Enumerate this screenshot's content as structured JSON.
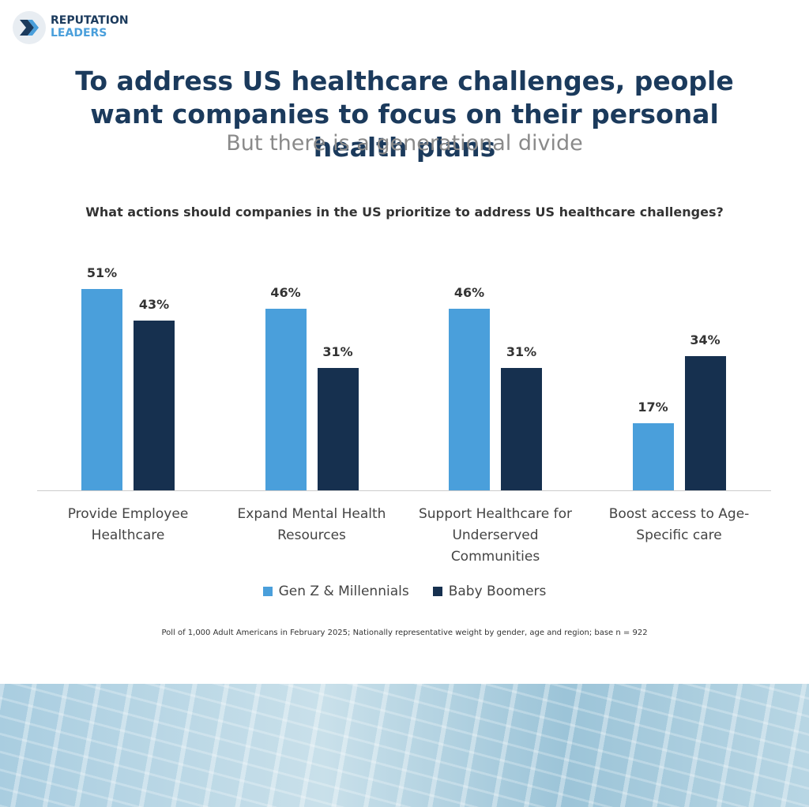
{
  "logo": {
    "line1": "REPUTATION",
    "line2": "LEADERS"
  },
  "chart_data": {
    "type": "bar",
    "title": "To address US healthcare challenges, people want companies to focus on their personal health plans",
    "subtitle": "But there is a generational divide",
    "question": "What actions should companies in the US prioritize to address US healthcare challenges?",
    "categories": [
      "Provide Employee Healthcare",
      "Expand Mental Health Resources",
      "Support Healthcare for Underserved Communities",
      "Boost access to Age-Specific care"
    ],
    "series": [
      {
        "name": "Gen Z & Millennials",
        "color": "#4a9fdb",
        "values": [
          51,
          46,
          46,
          17
        ],
        "value_labels": [
          "51%",
          "46%",
          "46%",
          "17%"
        ]
      },
      {
        "name": "Baby Boomers",
        "color": "#16304f",
        "values": [
          43,
          31,
          31,
          34
        ],
        "value_labels": [
          "43%",
          "31%",
          "31%",
          "34%"
        ]
      }
    ],
    "footnote": "Poll of 1,000 Adult Americans in February 2025; Nationally representative weight by gender, age and region; base n = 922"
  }
}
